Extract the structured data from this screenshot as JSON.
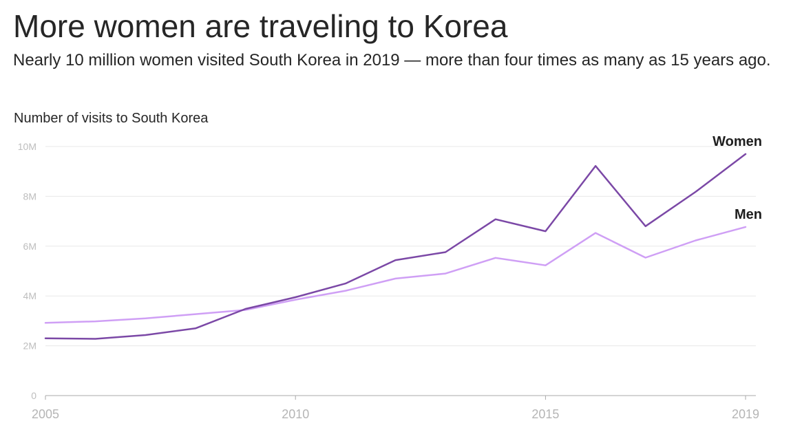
{
  "header": {
    "title": "More women are traveling to Korea",
    "subtitle": "Nearly 10 million women visited South Korea in 2019 — more than four times as many as 15 years ago."
  },
  "chart_data": {
    "type": "line",
    "title": "More women are traveling to Korea",
    "subtitle": "Nearly 10 million women visited South Korea in 2019 — more than four times as many as 15 years ago.",
    "ylabel": "Number of visits to South Korea",
    "xlabel": "",
    "x": [
      2005,
      2006,
      2007,
      2008,
      2009,
      2010,
      2011,
      2012,
      2013,
      2014,
      2015,
      2016,
      2017,
      2018,
      2019
    ],
    "xlim": [
      2005,
      2019
    ],
    "ylim": [
      0,
      10000000
    ],
    "grid": true,
    "x_ticks": [
      2005,
      2010,
      2015,
      2019
    ],
    "x_tick_labels": [
      "2005",
      "2010",
      "2015",
      "2019"
    ],
    "y_ticks": [
      0,
      2000000,
      4000000,
      6000000,
      8000000,
      10000000
    ],
    "y_tick_labels": [
      "0",
      "2M",
      "4M",
      "6M",
      "8M",
      "10M"
    ],
    "series": [
      {
        "name": "Women",
        "color": "#7b48a6",
        "values": [
          2300000,
          2280000,
          2430000,
          2700000,
          3480000,
          3950000,
          4500000,
          5440000,
          5760000,
          7080000,
          6600000,
          9220000,
          6800000,
          8180000,
          9700000
        ]
      },
      {
        "name": "Men",
        "color": "#cf9ff5",
        "values": [
          2920000,
          2980000,
          3100000,
          3270000,
          3440000,
          3850000,
          4210000,
          4700000,
          4900000,
          5530000,
          5230000,
          6530000,
          5540000,
          6230000,
          6770000
        ]
      }
    ]
  }
}
